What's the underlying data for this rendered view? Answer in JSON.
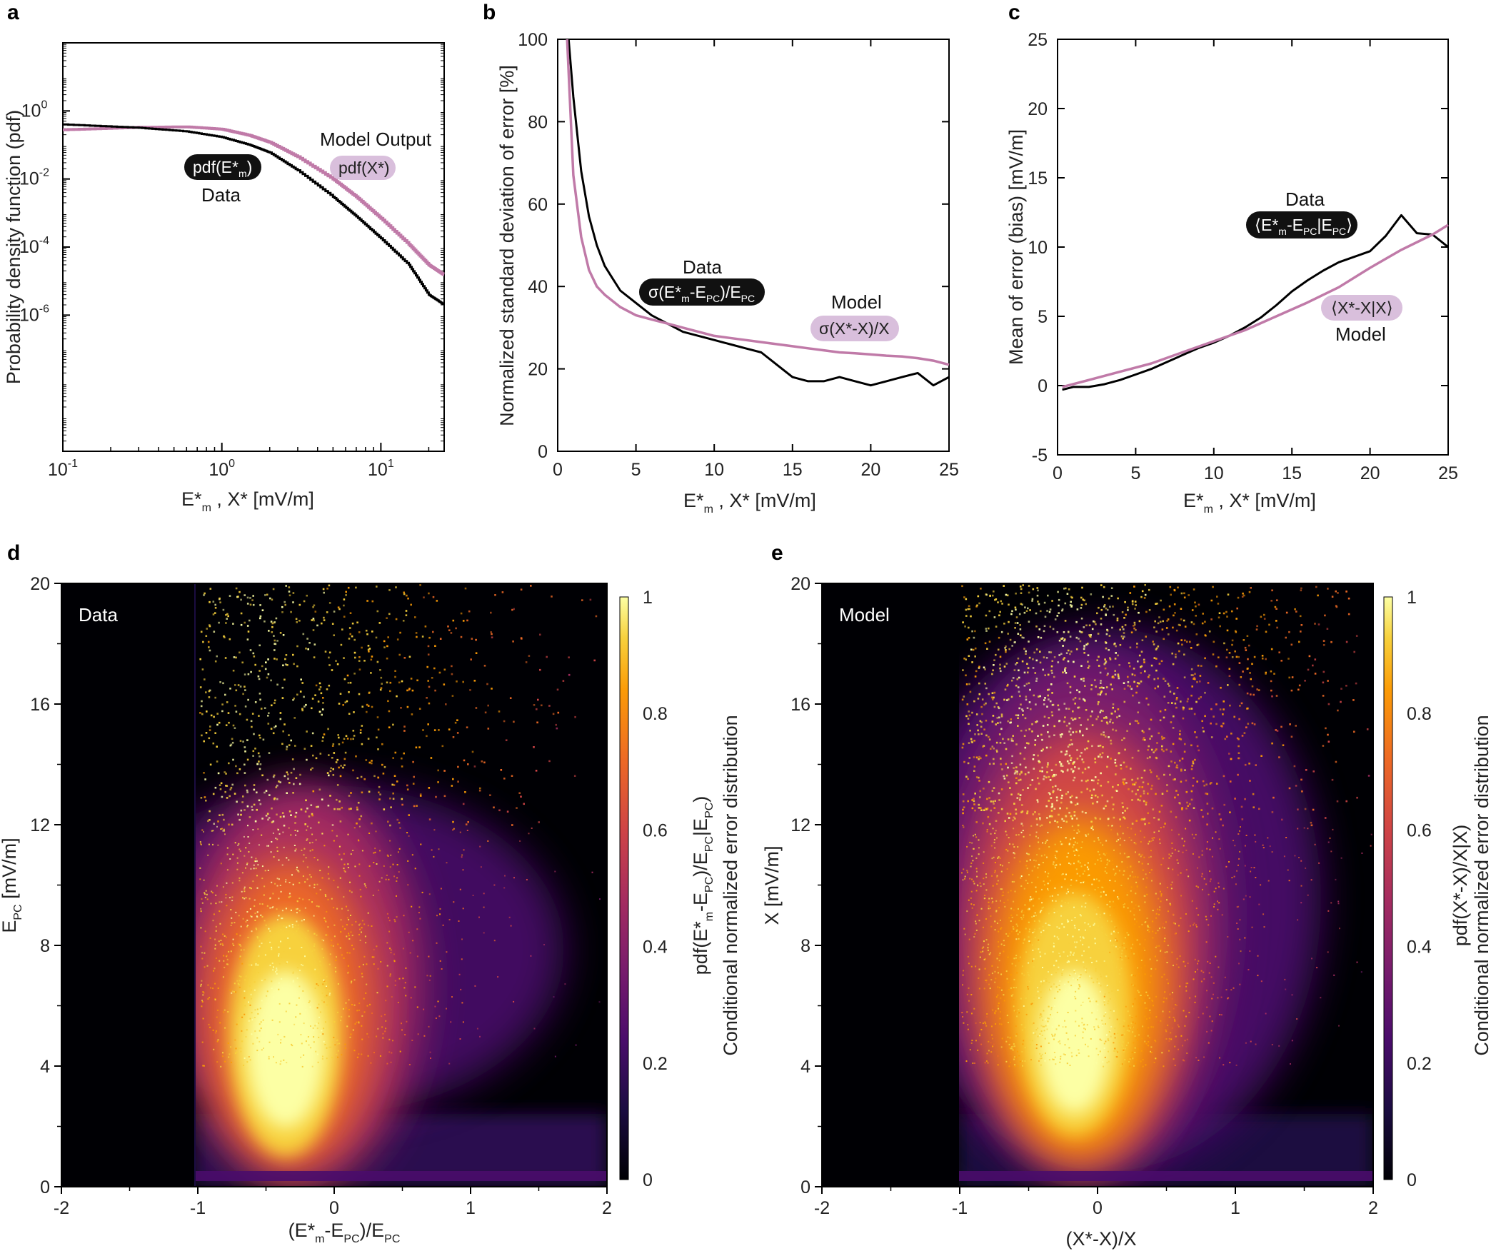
{
  "colors": {
    "data": "#000000",
    "model": "#c07aa8",
    "model_pill": "#d9bfdc",
    "data_pill": "#111111",
    "colormap": [
      "#000004",
      "#1b0c41",
      "#4a0c6b",
      "#781c6d",
      "#a52c60",
      "#cf4446",
      "#ed6925",
      "#fb9b06",
      "#f7d13d",
      "#fcffa4"
    ]
  },
  "panels": {
    "a": {
      "letter": "a",
      "ylabel": "Probability density function (pdf)",
      "xlabel": "E*m ,  X* [mV/m]",
      "xticks": [
        "10-1",
        "100",
        "101"
      ],
      "yticks": [
        "100",
        "10-2",
        "10-4",
        "10-6"
      ],
      "ann_model_output": "Model Output",
      "ann_data": "Data",
      "pill_data": "pdf(E*m)",
      "pill_model": "pdf(X*)"
    },
    "b": {
      "letter": "b",
      "ylabel": "Normalized standard deviation of error [%]",
      "xlabel": "E*m ,  X* [mV/m]",
      "xticks": [
        "0",
        "5",
        "10",
        "15",
        "20",
        "25"
      ],
      "yticks": [
        "0",
        "20",
        "40",
        "60",
        "80",
        "100"
      ],
      "ann_data": "Data",
      "ann_model": "Model",
      "pill_data": "σ(E*m-EPC)/EPC",
      "pill_model": "σ(X*-X)/X"
    },
    "c": {
      "letter": "c",
      "ylabel": "Mean of error (bias) [mV/m]",
      "xlabel": "E*m ,  X* [mV/m]",
      "xticks": [
        "0",
        "5",
        "10",
        "15",
        "20",
        "25"
      ],
      "yticks": [
        "-5",
        "0",
        "5",
        "10",
        "15",
        "20",
        "25"
      ],
      "ann_data": "Data",
      "ann_model": "Model",
      "pill_data": "⟨E*m-EPC|EPC⟩",
      "pill_model": "⟨X*-X|X⟩"
    },
    "d": {
      "letter": "d",
      "inset": "Data",
      "ylabel": "EPC [mV/m]",
      "xlabel": "(E*m-EPC)/EPC",
      "xticks": [
        "-2",
        "-1",
        "0",
        "1",
        "2"
      ],
      "yticks": [
        "0",
        "4",
        "8",
        "12",
        "16",
        "20"
      ],
      "cbar_ticks": [
        "0",
        "0.2",
        "0.4",
        "0.6",
        "0.8",
        "1"
      ],
      "cbar_label_1": "pdf(E*m-EPC)/EPC|EPC)",
      "cbar_label_2": "Conditional normalized error distribution"
    },
    "e": {
      "letter": "e",
      "inset": "Model",
      "ylabel": "X [mV/m]",
      "xlabel": "(X*-X)/X",
      "xticks": [
        "-2",
        "-1",
        "0",
        "1",
        "2"
      ],
      "yticks": [
        "0",
        "4",
        "8",
        "12",
        "16",
        "20"
      ],
      "cbar_ticks": [
        "0",
        "0.2",
        "0.4",
        "0.6",
        "0.8",
        "1"
      ],
      "cbar_label_1": "pdf(X*-X)/X|X)",
      "cbar_label_2": "Conditional normalized error distribution"
    }
  },
  "chart_data": [
    {
      "panel": "a",
      "type": "line",
      "x_scale": "log",
      "y_scale": "log",
      "xlim": [
        0.1,
        25
      ],
      "ylim": [
        1e-10,
        100
      ],
      "grid": false,
      "series": [
        {
          "name": "Data",
          "x": [
            0.1,
            0.3,
            0.6,
            1,
            1.5,
            2,
            3,
            5,
            7,
            10,
            15,
            20,
            25
          ],
          "y": [
            0.4,
            0.32,
            0.25,
            0.17,
            0.1,
            0.06,
            0.018,
            0.003,
            0.0008,
            0.00018,
            3e-05,
            4e-06,
            2e-06
          ]
        },
        {
          "name": "Model Output",
          "x": [
            0.1,
            0.3,
            0.6,
            1,
            1.5,
            2,
            3,
            5,
            7,
            10,
            15,
            20,
            25
          ],
          "y": [
            0.28,
            0.33,
            0.34,
            0.29,
            0.19,
            0.12,
            0.045,
            0.01,
            0.003,
            0.0007,
            0.00012,
            3e-05,
            1.5e-05
          ]
        }
      ]
    },
    {
      "panel": "b",
      "type": "line",
      "xlim": [
        0,
        25
      ],
      "ylim": [
        0,
        100
      ],
      "grid": false,
      "series": [
        {
          "name": "Data",
          "x": [
            0.7,
            1,
            1.5,
            2,
            2.5,
            3,
            3.5,
            4,
            5,
            6,
            7,
            8,
            9,
            10,
            11,
            12,
            13,
            14,
            15,
            16,
            17,
            18,
            19,
            20,
            21,
            22,
            23,
            24,
            25
          ],
          "y": [
            100,
            86,
            68,
            57,
            50,
            45,
            42,
            39,
            36,
            33,
            31,
            29,
            28,
            27,
            26,
            25,
            24,
            21,
            18,
            17,
            17,
            18,
            17,
            16,
            17,
            18,
            19,
            16,
            18
          ]
        },
        {
          "name": "Model",
          "x": [
            0.6,
            1,
            1.5,
            2,
            2.5,
            3,
            4,
            5,
            6,
            7,
            8,
            9,
            10,
            11,
            12,
            13,
            14,
            15,
            16,
            17,
            18,
            19,
            20,
            21,
            22,
            23,
            24,
            25
          ],
          "y": [
            100,
            67,
            52,
            44,
            40,
            38,
            35,
            33,
            32,
            31,
            30,
            29,
            28,
            27.5,
            27,
            26.5,
            26,
            25.5,
            25,
            24.5,
            24,
            23.8,
            23.5,
            23.2,
            23,
            22.6,
            22,
            21
          ]
        }
      ]
    },
    {
      "panel": "c",
      "type": "line",
      "xlim": [
        0,
        25
      ],
      "ylim": [
        -5,
        25
      ],
      "grid": false,
      "series": [
        {
          "name": "Data",
          "x": [
            0.3,
            1,
            2,
            3,
            4,
            5,
            6,
            7,
            8,
            9,
            10,
            11,
            12,
            13,
            14,
            15,
            16,
            17,
            18,
            19,
            20,
            21,
            22,
            23,
            24,
            25
          ],
          "y": [
            -0.3,
            -0.1,
            -0.1,
            0.1,
            0.4,
            0.8,
            1.2,
            1.7,
            2.2,
            2.7,
            3.1,
            3.6,
            4.2,
            4.9,
            5.8,
            6.8,
            7.6,
            8.3,
            8.9,
            9.3,
            9.7,
            10.8,
            12.3,
            11.0,
            10.9,
            10.0
          ]
        },
        {
          "name": "Model",
          "x": [
            0.3,
            2,
            4,
            6,
            8,
            10,
            12,
            14,
            16,
            18,
            20,
            22,
            24,
            25
          ],
          "y": [
            -0.1,
            0.4,
            1.0,
            1.6,
            2.4,
            3.2,
            4.0,
            5.0,
            6.0,
            7.1,
            8.5,
            9.8,
            10.9,
            11.6
          ]
        }
      ]
    },
    {
      "panel": "d",
      "type": "heatmap",
      "x_label": "(E*m-EPC)/EPC",
      "y_label": "EPC [mV/m]",
      "xlim": [
        -2,
        2
      ],
      "ylim": [
        0,
        20
      ],
      "clim": [
        0,
        1
      ],
      "support_x_min": -1,
      "peak_x_by_y": [
        [
          1,
          -0.35
        ],
        [
          3,
          -0.35
        ],
        [
          6,
          -0.4
        ],
        [
          9,
          -0.4
        ],
        [
          13,
          -0.45
        ],
        [
          18,
          -0.5
        ]
      ]
    },
    {
      "panel": "e",
      "type": "heatmap",
      "x_label": "(X*-X)/X",
      "y_label": "X [mV/m]",
      "xlim": [
        -2,
        2
      ],
      "ylim": [
        0,
        20
      ],
      "clim": [
        0,
        1
      ],
      "support_x_min": -1,
      "peak_x_by_y": [
        [
          1,
          -0.2
        ],
        [
          3,
          -0.2
        ],
        [
          6,
          -0.25
        ],
        [
          9,
          -0.3
        ],
        [
          13,
          -0.3
        ],
        [
          18,
          -0.35
        ]
      ]
    }
  ]
}
